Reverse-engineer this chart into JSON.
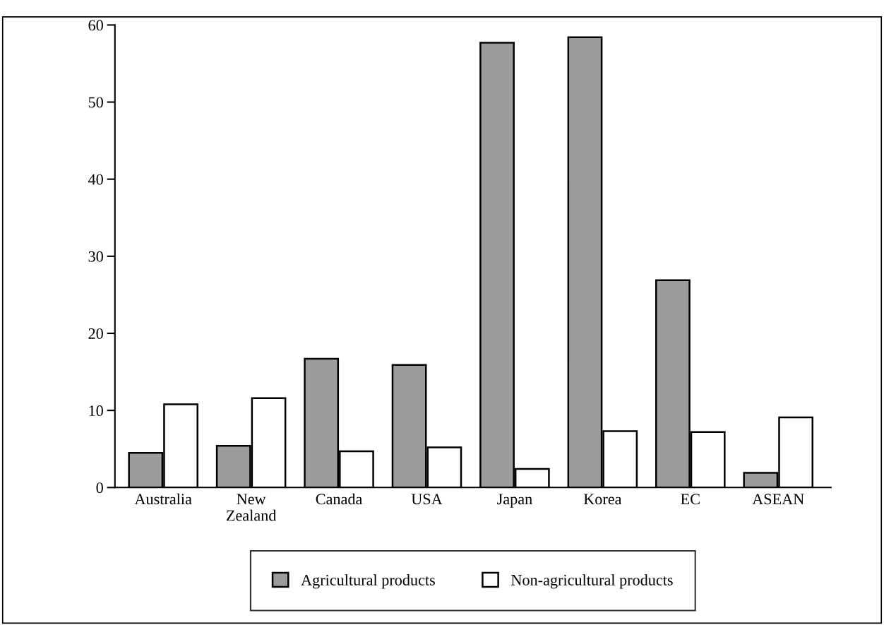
{
  "chart_data": {
    "type": "bar",
    "categories": [
      "Australia",
      "New\nZealand",
      "Canada",
      "USA",
      "Japan",
      "Korea",
      "EC",
      "ASEAN"
    ],
    "series": [
      {
        "name": "Agricultural products",
        "color": "#9c9c9c",
        "values": [
          4.5,
          5.4,
          16.7,
          15.9,
          57.7,
          58.4,
          26.9,
          1.9
        ]
      },
      {
        "name": "Non-agricultural products",
        "color": "#ffffff",
        "values": [
          10.8,
          11.6,
          4.7,
          5.2,
          2.4,
          7.3,
          7.2,
          9.1
        ]
      }
    ],
    "ylim": [
      0,
      60
    ],
    "yticks": [
      0,
      10,
      20,
      30,
      40,
      50,
      60
    ],
    "grid": false,
    "legend": "bottom"
  }
}
